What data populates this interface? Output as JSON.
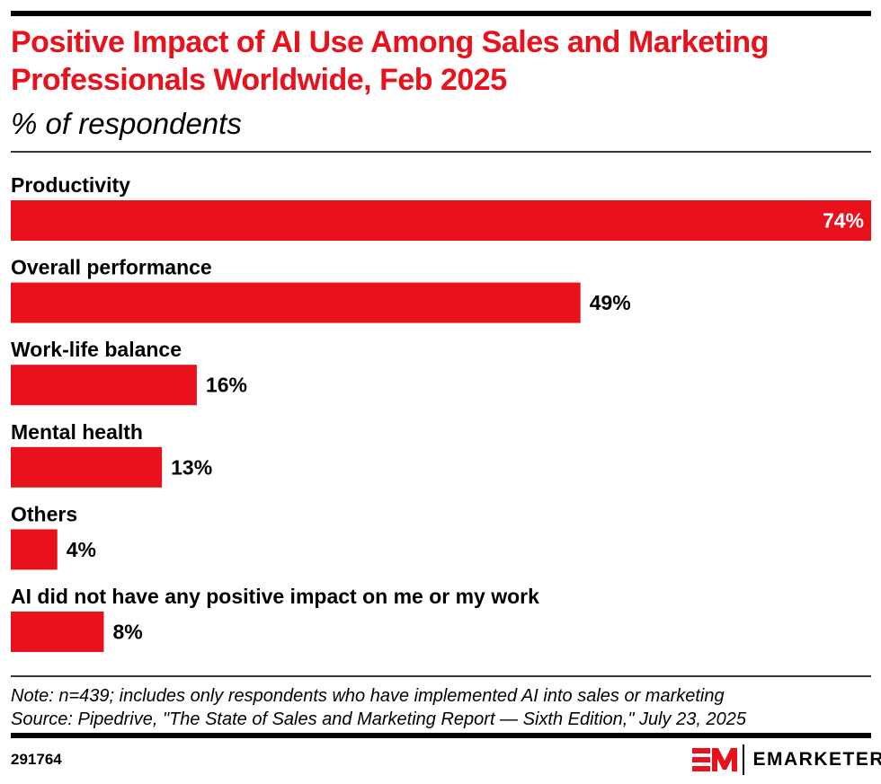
{
  "header": {
    "title": "Positive Impact of AI Use Among Sales and Marketing Professionals Worldwide, Feb 2025",
    "subtitle": "% of respondents"
  },
  "chart_data": {
    "type": "bar",
    "orientation": "horizontal",
    "title": "Positive Impact of AI Use Among Sales and Marketing Professionals Worldwide, Feb 2025",
    "subtitle": "% of respondents",
    "xlabel": "",
    "ylabel": "",
    "unit": "%",
    "categories": [
      "Productivity",
      "Overall performance",
      "Work-life balance",
      "Mental health",
      "Others",
      "AI did not have any positive impact on me or my work"
    ],
    "values": [
      74,
      49,
      16,
      13,
      4,
      8
    ],
    "value_labels": [
      "74%",
      "49%",
      "16%",
      "13%",
      "4%",
      "8%"
    ],
    "xlim": [
      0,
      74
    ],
    "grid": false,
    "legend": "none",
    "bar_color": "#e8111c"
  },
  "footer": {
    "note": "Note: n=439; includes only respondents who have implemented AI into sales or marketing",
    "source": "Source: Pipedrive, \"The State of Sales and Marketing Report — Sixth Edition,\" July 23, 2025",
    "chart_id": "291764",
    "brand": "EMARKETER",
    "brand_color": "#e8111c"
  }
}
